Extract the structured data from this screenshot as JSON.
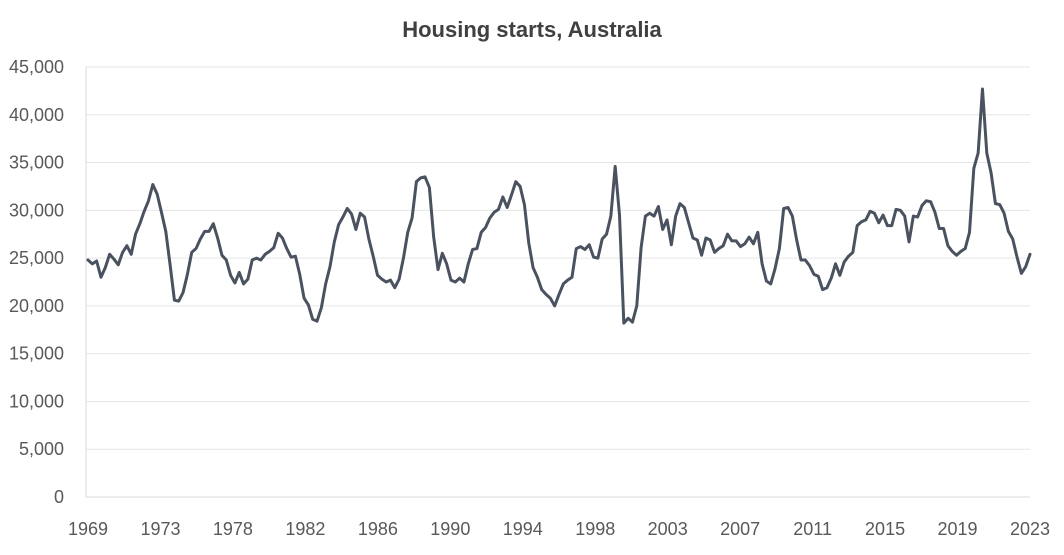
{
  "chart_data": {
    "type": "line",
    "title": "Housing starts, Australia",
    "xlabel": "",
    "ylabel": "",
    "ylim": [
      0,
      45000
    ],
    "y_ticks": [
      0,
      5000,
      10000,
      15000,
      20000,
      25000,
      30000,
      35000,
      40000,
      45000
    ],
    "y_tick_labels": [
      "0",
      "5,000",
      "10,000",
      "15,000",
      "20,000",
      "25,000",
      "30,000",
      "35,000",
      "40,000",
      "45,000"
    ],
    "x_tick_labels": [
      "1969",
      "1973",
      "1978",
      "1982",
      "1986",
      "1990",
      "1994",
      "1998",
      "2003",
      "2007",
      "2011",
      "2015",
      "2019",
      "2023"
    ],
    "x_frequency": "quarterly",
    "x_start": "1969",
    "x_end": "2023",
    "grid": true,
    "legend": "none",
    "series": [
      {
        "color": "#4a5260",
        "values": [
          24800,
          24400,
          24700,
          23000,
          24000,
          25400,
          24900,
          24300,
          25600,
          26300,
          25400,
          27500,
          28600,
          29900,
          31000,
          32700,
          31700,
          29800,
          27800,
          24300,
          20600,
          20500,
          21400,
          23300,
          25600,
          26000,
          27000,
          27800,
          27800,
          28600,
          27100,
          25300,
          24800,
          23200,
          22400,
          23500,
          22300,
          22800,
          24800,
          25000,
          24800,
          25400,
          25700,
          26100,
          27600,
          27100,
          26000,
          25100,
          25200,
          23300,
          20800,
          20100,
          18600,
          18400,
          19800,
          22300,
          24100,
          26700,
          28500,
          29300,
          30200,
          29600,
          28000,
          29700,
          29300,
          27000,
          25200,
          23200,
          22800,
          22500,
          22700,
          21900,
          22800,
          25000,
          27700,
          29200,
          33000,
          33400,
          33500,
          32400,
          27200,
          23800,
          25500,
          24400,
          22700,
          22500,
          22900,
          22500,
          24400,
          25900,
          26000,
          27700,
          28200,
          29200,
          29800,
          30100,
          31400,
          30300,
          31600,
          33000,
          32500,
          30600,
          26600,
          24000,
          23000,
          21700,
          21200,
          20800,
          20000,
          21200,
          22300,
          22700,
          23000,
          26000,
          26200,
          25900,
          26400,
          25100,
          25000,
          27000,
          27500,
          29400,
          34600,
          29500,
          18200,
          18700,
          18300,
          20000,
          26100,
          29400,
          29700,
          29400,
          30400,
          28000,
          29000,
          26400,
          29400,
          30700,
          30300,
          28700,
          27100,
          26900,
          25300,
          27100,
          26900,
          25600,
          26000,
          26300,
          27500,
          26800,
          26800,
          26200,
          26500,
          27200,
          26500,
          27700,
          24400,
          22600,
          22300,
          23900,
          26000,
          30200,
          30300,
          29400,
          26900,
          24800,
          24800,
          24200,
          23300,
          23100,
          21700,
          21900,
          22900,
          24400,
          23200,
          24600,
          25200,
          25600,
          28400,
          28800,
          29000,
          29900,
          29700,
          28700,
          29500,
          28400,
          28400,
          30100,
          30000,
          29400,
          26700,
          29400,
          29300,
          30500,
          31000,
          30900,
          29800,
          28100,
          28100,
          26300,
          25700,
          25300,
          25700,
          26000,
          27700,
          34400,
          36000,
          42700,
          36000,
          33900,
          30700,
          30600,
          29700,
          27800,
          27000,
          25100,
          23400,
          24100,
          25400
        ]
      }
    ]
  }
}
